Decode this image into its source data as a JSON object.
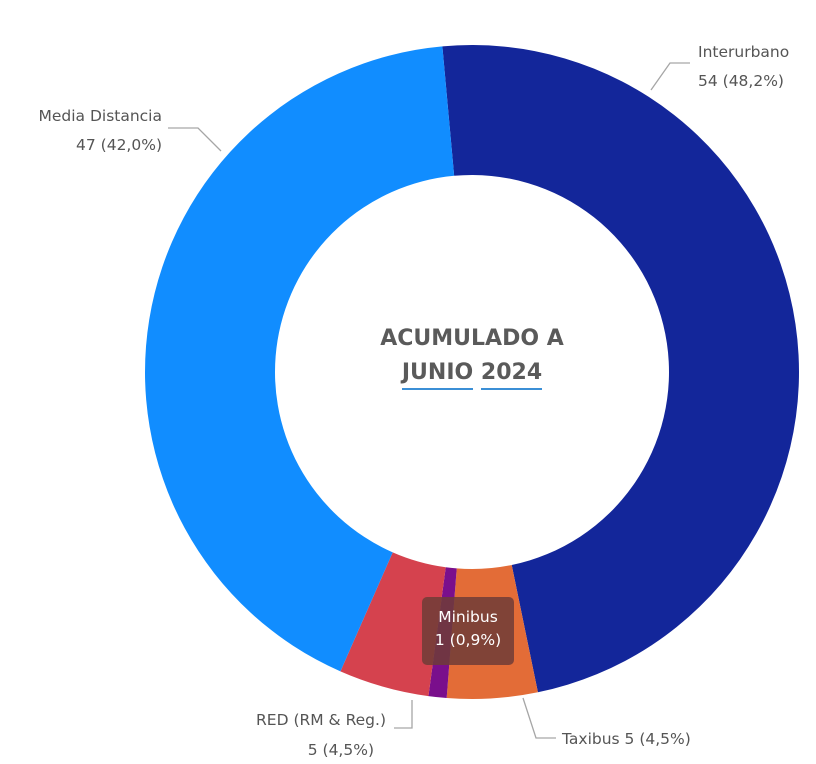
{
  "chart_data": {
    "type": "pie",
    "variant": "donut",
    "center_title_line1": "ACUMULADO A",
    "center_title_line2_word1": "JUNIO",
    "center_title_line2_word2": "2024",
    "slices": [
      {
        "name": "Interurbano",
        "value": 54,
        "percent": "48,2%",
        "value_text": "54 (48,2%)",
        "color": "#13269a"
      },
      {
        "name": "Taxibus",
        "value": 5,
        "percent": "4,5%",
        "value_text": "5 (4,5%)",
        "color": "#e36c37"
      },
      {
        "name": "Minibus",
        "value": 1,
        "percent": "0,9%",
        "value_text": "1 (0,9%)",
        "color": "#7a0f8c"
      },
      {
        "name": "RED (RM & Reg.)",
        "value": 5,
        "percent": "4,5%",
        "value_text": "5 (4,5%)",
        "color": "#d5424e"
      },
      {
        "name": "Media Distancia",
        "value": 47,
        "percent": "42,0%",
        "value_text": "47 (42,0%)",
        "color": "#118dff"
      }
    ],
    "labels": {
      "interurbano_name": "Interurbano",
      "interurbano_value": "54 (48,2%)",
      "media_name": "Media Distancia",
      "media_value": "47 (42,0%)",
      "red_name": "RED (RM & Reg.)",
      "red_value": "5 (4,5%)",
      "taxibus": "Taxibus 5 (4,5%)"
    },
    "tooltip": {
      "name": "Minibus",
      "value": "1 (0,9%)"
    }
  }
}
